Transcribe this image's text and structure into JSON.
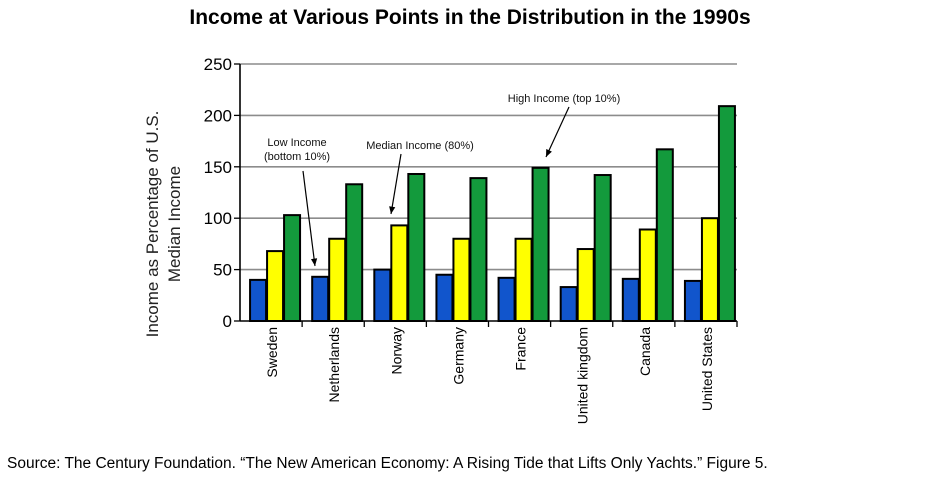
{
  "chart_data": {
    "type": "bar",
    "title": "Income at Various Points in the Distribution in the 1990s",
    "ylabel": [
      "Income as Percentage of U.S.",
      "Median Income"
    ],
    "xlabel": "",
    "ylim": [
      0,
      250
    ],
    "yticks": [
      0,
      50,
      100,
      150,
      200,
      250
    ],
    "grid": true,
    "categories": [
      "Sweden",
      "Netherlands",
      "Norway",
      "Germany",
      "France",
      "United kingdom",
      "Canada",
      "United States"
    ],
    "series": [
      {
        "values": [
          40,
          43,
          50,
          45,
          42,
          33,
          41,
          39
        ],
        "color": "#1155cc"
      },
      {
        "values": [
          68,
          80,
          93,
          80,
          80,
          70,
          89,
          100
        ],
        "color": "#ffff00"
      },
      {
        "values": [
          103,
          133,
          143,
          139,
          149,
          142,
          167,
          209
        ],
        "color": "#139a3c"
      }
    ],
    "annotations": [
      {
        "lines": [
          "Low Income",
          "(bottom 10%)"
        ]
      },
      {
        "lines": [
          "Median Income (80%)"
        ]
      },
      {
        "lines": [
          "High Income (top 10%)"
        ]
      }
    ]
  },
  "footer": {
    "source": "Source: The Century Foundation. “The New American Economy: A Rising Tide that Lifts Only Yachts.”  Figure 5."
  }
}
